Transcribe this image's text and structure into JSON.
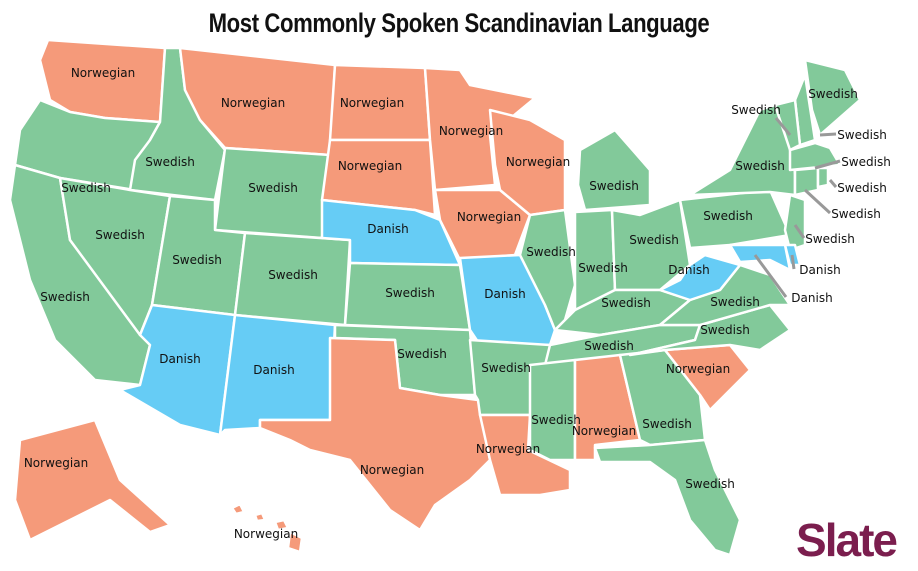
{
  "title": "Most Commonly Spoken Scandinavian Language",
  "logo": "Slate",
  "colors": {
    "Norwegian": "#f59a7a",
    "Swedish": "#82c99a",
    "Danish": "#66ccf5",
    "logo": "#7b1e4e"
  },
  "states": [
    {
      "id": "WA",
      "language": "Norwegian"
    },
    {
      "id": "OR",
      "language": "Swedish"
    },
    {
      "id": "CA",
      "language": "Swedish"
    },
    {
      "id": "ID",
      "language": "Swedish"
    },
    {
      "id": "NV",
      "language": "Swedish"
    },
    {
      "id": "MT",
      "language": "Norwegian"
    },
    {
      "id": "WY",
      "language": "Swedish"
    },
    {
      "id": "UT",
      "language": "Swedish"
    },
    {
      "id": "AZ",
      "language": "Danish"
    },
    {
      "id": "CO",
      "language": "Swedish"
    },
    {
      "id": "NM",
      "language": "Danish"
    },
    {
      "id": "ND",
      "language": "Norwegian"
    },
    {
      "id": "SD",
      "language": "Norwegian"
    },
    {
      "id": "NE",
      "language": "Danish"
    },
    {
      "id": "KS",
      "language": "Swedish"
    },
    {
      "id": "OK",
      "language": "Swedish"
    },
    {
      "id": "TX",
      "language": "Norwegian"
    },
    {
      "id": "MN",
      "language": "Norwegian"
    },
    {
      "id": "IA",
      "language": "Norwegian"
    },
    {
      "id": "MO",
      "language": "Danish"
    },
    {
      "id": "AR",
      "language": "Swedish"
    },
    {
      "id": "LA",
      "language": "Norwegian"
    },
    {
      "id": "WI",
      "language": "Norwegian"
    },
    {
      "id": "IL",
      "language": "Swedish"
    },
    {
      "id": "MI",
      "language": "Swedish"
    },
    {
      "id": "IN",
      "language": "Swedish"
    },
    {
      "id": "OH",
      "language": "Swedish"
    },
    {
      "id": "KY",
      "language": "Swedish"
    },
    {
      "id": "TN",
      "language": "Swedish"
    },
    {
      "id": "MS",
      "language": "Swedish"
    },
    {
      "id": "AL",
      "language": "Norwegian"
    },
    {
      "id": "GA",
      "language": "Swedish"
    },
    {
      "id": "FL",
      "language": "Swedish"
    },
    {
      "id": "SC",
      "language": "Norwegian"
    },
    {
      "id": "NC",
      "language": "Swedish"
    },
    {
      "id": "VA",
      "language": "Swedish"
    },
    {
      "id": "WV",
      "language": "Danish"
    },
    {
      "id": "PA",
      "language": "Swedish"
    },
    {
      "id": "NY",
      "language": "Swedish"
    },
    {
      "id": "ME",
      "language": "Swedish"
    },
    {
      "id": "NH",
      "language": "Swedish"
    },
    {
      "id": "VT",
      "language": "Swedish"
    },
    {
      "id": "MA",
      "language": "Swedish"
    },
    {
      "id": "CT",
      "language": "Swedish"
    },
    {
      "id": "RI",
      "language": "Swedish"
    },
    {
      "id": "NJ",
      "language": "Swedish"
    },
    {
      "id": "DE",
      "language": "Danish"
    },
    {
      "id": "MD",
      "language": "Danish"
    },
    {
      "id": "AK",
      "language": "Norwegian"
    },
    {
      "id": "HI",
      "language": "Norwegian"
    }
  ]
}
